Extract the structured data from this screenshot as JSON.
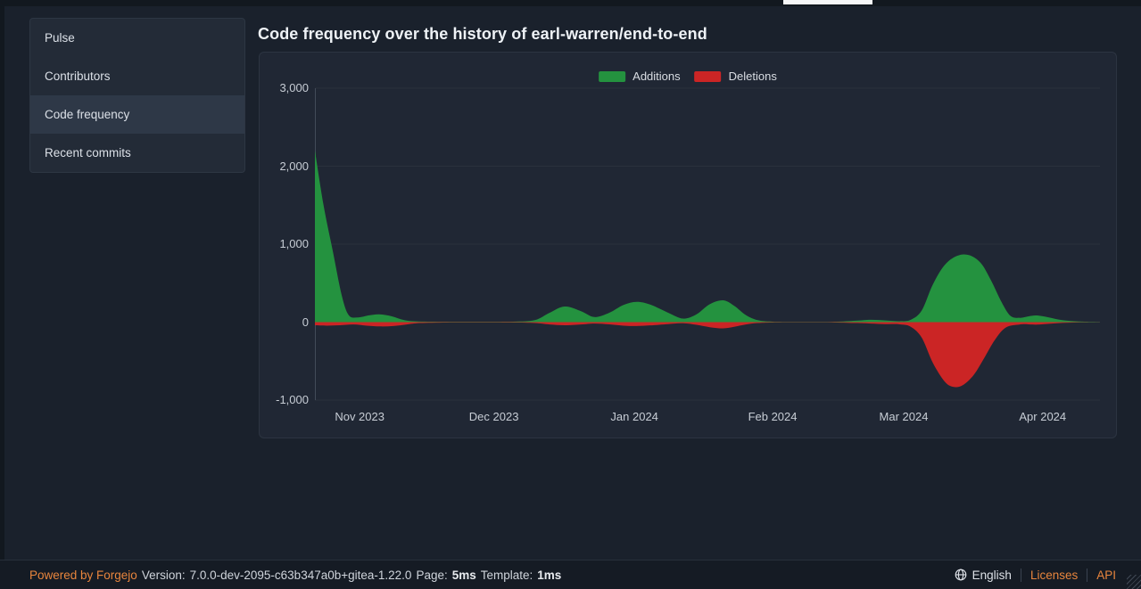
{
  "window": {
    "tab_indicator": "active-tab"
  },
  "sidebar": {
    "items": [
      {
        "label": "Pulse",
        "active": false
      },
      {
        "label": "Contributors",
        "active": false
      },
      {
        "label": "Code frequency",
        "active": true
      },
      {
        "label": "Recent commits",
        "active": false
      }
    ]
  },
  "header": {
    "title": "Code frequency over the history of earl-warren/end-to-end"
  },
  "chart_data": {
    "type": "area",
    "title": "Code frequency over the history of earl-warren/end-to-end",
    "legend": [
      "Additions",
      "Deletions"
    ],
    "legend_position": "top-center",
    "grid": true,
    "colors": {
      "additions": "#24923f",
      "deletions": "#cb2525"
    },
    "ylim": [
      -1000,
      3000
    ],
    "y_ticks": [
      {
        "value": 3000,
        "label": "3,000"
      },
      {
        "value": 2000,
        "label": "2,000"
      },
      {
        "value": 1000,
        "label": "1,000"
      },
      {
        "value": 0,
        "label": "0"
      },
      {
        "value": -1000,
        "label": "-1,000"
      }
    ],
    "x_ticks": [
      {
        "label": "Nov 2023",
        "pos": 0.057
      },
      {
        "label": "Dec 2023",
        "pos": 0.228
      },
      {
        "label": "Jan 2024",
        "pos": 0.407
      },
      {
        "label": "Feb 2024",
        "pos": 0.583
      },
      {
        "label": "Mar 2024",
        "pos": 0.75
      },
      {
        "label": "Apr 2024",
        "pos": 0.927
      }
    ],
    "series": [
      {
        "name": "Additions",
        "color": "#24923f",
        "points": [
          [
            0.0,
            2200
          ],
          [
            0.011,
            1500
          ],
          [
            0.023,
            900
          ],
          [
            0.034,
            350
          ],
          [
            0.043,
            90
          ],
          [
            0.055,
            60
          ],
          [
            0.068,
            85
          ],
          [
            0.082,
            100
          ],
          [
            0.098,
            75
          ],
          [
            0.114,
            25
          ],
          [
            0.132,
            8
          ],
          [
            0.168,
            4
          ],
          [
            0.214,
            4
          ],
          [
            0.253,
            6
          ],
          [
            0.28,
            25
          ],
          [
            0.299,
            120
          ],
          [
            0.318,
            200
          ],
          [
            0.339,
            140
          ],
          [
            0.356,
            65
          ],
          [
            0.375,
            120
          ],
          [
            0.393,
            220
          ],
          [
            0.41,
            260
          ],
          [
            0.427,
            225
          ],
          [
            0.45,
            120
          ],
          [
            0.469,
            45
          ],
          [
            0.486,
            100
          ],
          [
            0.503,
            230
          ],
          [
            0.52,
            280
          ],
          [
            0.534,
            210
          ],
          [
            0.549,
            90
          ],
          [
            0.564,
            25
          ],
          [
            0.583,
            6
          ],
          [
            0.623,
            3
          ],
          [
            0.662,
            4
          ],
          [
            0.689,
            18
          ],
          [
            0.708,
            30
          ],
          [
            0.727,
            22
          ],
          [
            0.745,
            12
          ],
          [
            0.759,
            30
          ],
          [
            0.773,
            150
          ],
          [
            0.787,
            480
          ],
          [
            0.802,
            730
          ],
          [
            0.818,
            850
          ],
          [
            0.833,
            860
          ],
          [
            0.848,
            760
          ],
          [
            0.861,
            540
          ],
          [
            0.875,
            250
          ],
          [
            0.886,
            80
          ],
          [
            0.898,
            55
          ],
          [
            0.909,
            75
          ],
          [
            0.92,
            85
          ],
          [
            0.935,
            60
          ],
          [
            0.952,
            25
          ],
          [
            0.973,
            8
          ],
          [
            1.0,
            2
          ]
        ]
      },
      {
        "name": "Deletions",
        "color": "#cb2525",
        "points": [
          [
            0.0,
            -40
          ],
          [
            0.015,
            -45
          ],
          [
            0.032,
            -40
          ],
          [
            0.049,
            -30
          ],
          [
            0.066,
            -45
          ],
          [
            0.083,
            -55
          ],
          [
            0.1,
            -50
          ],
          [
            0.117,
            -30
          ],
          [
            0.134,
            -12
          ],
          [
            0.168,
            -5
          ],
          [
            0.214,
            -4
          ],
          [
            0.253,
            -6
          ],
          [
            0.28,
            -12
          ],
          [
            0.299,
            -30
          ],
          [
            0.318,
            -40
          ],
          [
            0.339,
            -30
          ],
          [
            0.356,
            -18
          ],
          [
            0.375,
            -28
          ],
          [
            0.393,
            -45
          ],
          [
            0.41,
            -50
          ],
          [
            0.427,
            -42
          ],
          [
            0.45,
            -25
          ],
          [
            0.469,
            -15
          ],
          [
            0.486,
            -35
          ],
          [
            0.503,
            -65
          ],
          [
            0.52,
            -80
          ],
          [
            0.534,
            -60
          ],
          [
            0.549,
            -30
          ],
          [
            0.564,
            -12
          ],
          [
            0.583,
            -5
          ],
          [
            0.623,
            -3
          ],
          [
            0.662,
            -5
          ],
          [
            0.689,
            -12
          ],
          [
            0.708,
            -18
          ],
          [
            0.727,
            -25
          ],
          [
            0.745,
            -28
          ],
          [
            0.759,
            -60
          ],
          [
            0.773,
            -200
          ],
          [
            0.787,
            -520
          ],
          [
            0.802,
            -760
          ],
          [
            0.813,
            -830
          ],
          [
            0.825,
            -810
          ],
          [
            0.839,
            -680
          ],
          [
            0.852,
            -470
          ],
          [
            0.866,
            -230
          ],
          [
            0.88,
            -70
          ],
          [
            0.898,
            -30
          ],
          [
            0.909,
            -28
          ],
          [
            0.92,
            -32
          ],
          [
            0.935,
            -22
          ],
          [
            0.952,
            -10
          ],
          [
            0.973,
            -4
          ],
          [
            1.0,
            -2
          ]
        ]
      }
    ]
  },
  "footer": {
    "powered_by": "Powered by Forgejo",
    "version_label": "Version:",
    "version_value": "7.0.0-dev-2095-c63b347a0b+gitea-1.22.0",
    "page_label": "Page:",
    "page_value": "5ms",
    "template_label": "Template:",
    "template_value": "1ms",
    "language": "English",
    "licenses": "Licenses",
    "api": "API"
  },
  "colors": {
    "page_bg": "#1a212c",
    "panel_bg": "#202734",
    "accent_orange": "#e8853d",
    "additions_green": "#24923f",
    "deletions_red": "#cb2525"
  }
}
